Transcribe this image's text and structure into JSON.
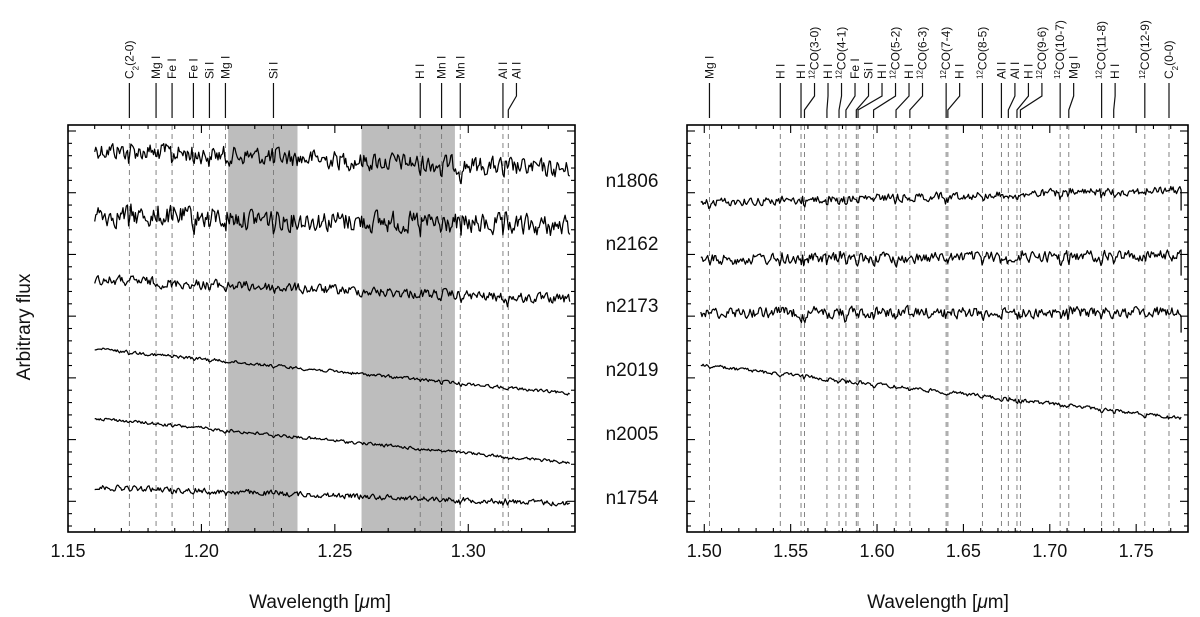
{
  "figure": {
    "ylabel": "Arbitrary flux",
    "xlabel_left": "Wavelength [",
    "xlabel_mu": "μ",
    "xlabel_right": "m]"
  },
  "chart_data": [
    {
      "type": "line",
      "panel": "left",
      "xlabel": "Wavelength [μm]",
      "ylabel": "Arbitrary flux",
      "xlim": [
        1.15,
        1.34
      ],
      "xticks": [
        1.15,
        1.2,
        1.25,
        1.3
      ],
      "xtick_labels": [
        "1.15",
        "1.20",
        "1.25",
        "1.30"
      ],
      "shaded_regions": [
        [
          1.21,
          1.236
        ],
        [
          1.26,
          1.295
        ]
      ],
      "lines": [
        {
          "label": "C2(2-0)",
          "x": 1.173
        },
        {
          "label": "Mg I",
          "x": 1.183
        },
        {
          "label": "Fe I",
          "x": 1.189
        },
        {
          "label": "Fe I",
          "x": 1.197
        },
        {
          "label": "Si I",
          "x": 1.203
        },
        {
          "label": "Mg I",
          "x": 1.209
        },
        {
          "label": "Si I",
          "x": 1.227
        },
        {
          "label": "H I",
          "x": 1.282
        },
        {
          "label": "Mn I",
          "x": 1.29
        },
        {
          "label": "Mn I",
          "x": 1.297
        },
        {
          "label": "Al I",
          "x": 1.313
        },
        {
          "label": "Al I",
          "x": 1.315
        }
      ],
      "series": [
        {
          "name": "n1806",
          "start": 0.06,
          "end": 0.11,
          "noise": 0.02
        },
        {
          "name": "n2162",
          "start": 0.22,
          "end": 0.25,
          "noise": 0.023
        },
        {
          "name": "n2173",
          "start": 0.38,
          "end": 0.43,
          "noise": 0.011
        },
        {
          "name": "n2019",
          "start": 0.55,
          "end": 0.66,
          "noise": 0.0035
        },
        {
          "name": "n2005",
          "start": 0.72,
          "end": 0.83,
          "noise": 0.0035
        },
        {
          "name": "n1754",
          "start": 0.89,
          "end": 0.93,
          "noise": 0.006
        }
      ]
    },
    {
      "type": "line",
      "panel": "right",
      "xlabel": "Wavelength [μm]",
      "xlim": [
        1.49,
        1.78
      ],
      "xticks": [
        1.5,
        1.55,
        1.6,
        1.65,
        1.7,
        1.75
      ],
      "xtick_labels": [
        "1.50",
        "1.55",
        "1.60",
        "1.65",
        "1.70",
        "1.75"
      ],
      "lines": [
        {
          "label": "Mg I",
          "x": 1.503
        },
        {
          "label": "H I",
          "x": 1.544
        },
        {
          "label": "H I",
          "x": 1.556
        },
        {
          "label": "12CO(3-0)",
          "x": 1.558
        },
        {
          "label": "H I",
          "x": 1.571
        },
        {
          "label": "12CO(4-1)",
          "x": 1.578
        },
        {
          "label": "Fe I",
          "x": 1.582
        },
        {
          "label": "Si I",
          "x": 1.588
        },
        {
          "label": "H I",
          "x": 1.589
        },
        {
          "label": "12CO(5-2)",
          "x": 1.598
        },
        {
          "label": "H I",
          "x": 1.611
        },
        {
          "label": "12CO(6-3)",
          "x": 1.619
        },
        {
          "label": "12CO(7-4)",
          "x": 1.64
        },
        {
          "label": "H I",
          "x": 1.641
        },
        {
          "label": "12CO(8-5)",
          "x": 1.661
        },
        {
          "label": "Al I",
          "x": 1.672
        },
        {
          "label": "Al I",
          "x": 1.676
        },
        {
          "label": "H I",
          "x": 1.681
        },
        {
          "label": "12CO(9-6)",
          "x": 1.683
        },
        {
          "label": "12CO(10-7)",
          "x": 1.706
        },
        {
          "label": "Mg I",
          "x": 1.711
        },
        {
          "label": "12CO(11-8)",
          "x": 1.73
        },
        {
          "label": "H I",
          "x": 1.737
        },
        {
          "label": "12CO(12-9)",
          "x": 1.755
        },
        {
          "label": "C2(0-0)",
          "x": 1.769
        }
      ],
      "series": [
        {
          "name": "n1806",
          "start": 0.19,
          "end": 0.16,
          "noise": 0.009
        },
        {
          "name": "n2162",
          "start": 0.33,
          "end": 0.32,
          "noise": 0.012
        },
        {
          "name": "n2173",
          "start": 0.46,
          "end": 0.46,
          "noise": 0.012
        },
        {
          "name": "n2019",
          "start": 0.59,
          "end": 0.72,
          "noise": 0.004
        }
      ]
    }
  ]
}
